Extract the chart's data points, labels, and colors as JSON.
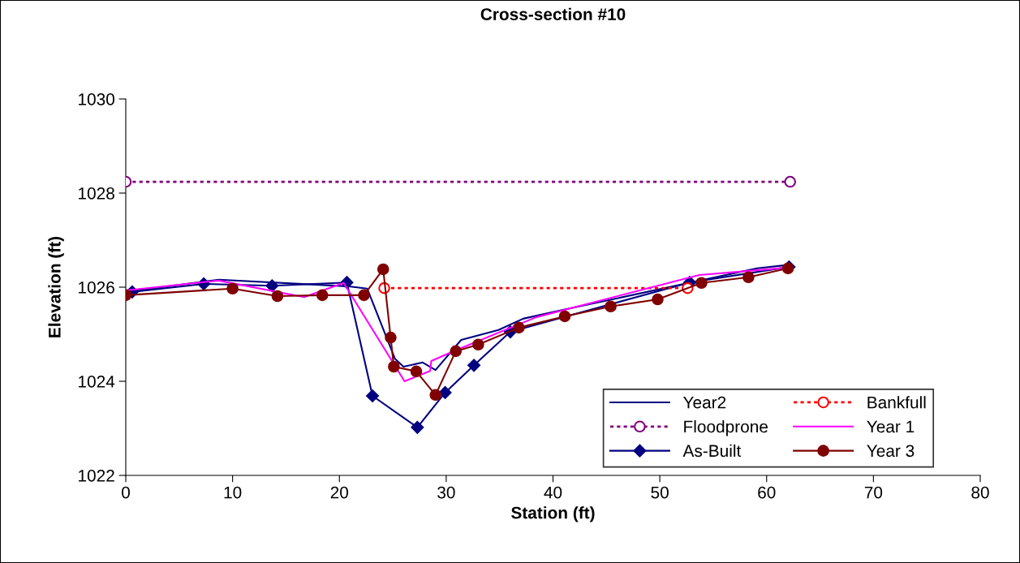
{
  "chart_data": {
    "type": "line",
    "title": "Cross-section #10",
    "xlabel": "Station (ft)",
    "ylabel": "Elevation (ft)",
    "xlim": [
      0,
      80
    ],
    "xticks": [
      0,
      10,
      20,
      30,
      40,
      50,
      60,
      70,
      80
    ],
    "ylim": [
      1022,
      1030
    ],
    "yticks": [
      1022,
      1024,
      1026,
      1028,
      1030
    ],
    "grid": false,
    "legend": "bottom right",
    "series": [
      {
        "name": "Year2",
        "color": "#000080",
        "marker": "none",
        "line_style": "solid",
        "x": [
          0,
          8.7,
          20.7,
          22.6,
          25.2,
          26.0,
          27.8,
          29.0,
          31.4,
          34.9,
          37.2,
          41.0,
          59.1,
          61.9
        ],
        "values": [
          1025.9,
          1026.16,
          1026.02,
          1025.97,
          1024.48,
          1024.31,
          1024.4,
          1024.24,
          1024.88,
          1025.09,
          1025.33,
          1025.52,
          1026.4,
          1026.47
        ]
      },
      {
        "name": "Floodprone",
        "color": "#800080",
        "marker": "circle",
        "line_style": "dotted",
        "x": [
          0,
          62.2
        ],
        "values": [
          1028.24,
          1028.24
        ]
      },
      {
        "name": "As-Built",
        "color": "#000080",
        "marker": "diamond",
        "line_style": "solid",
        "x": [
          0.6,
          7.3,
          13.7,
          20.7,
          23.1,
          27.3,
          29.9,
          32.6,
          36.0,
          52.8,
          62.1
        ],
        "values": [
          1025.9,
          1026.07,
          1026.03,
          1026.1,
          1023.69,
          1023.02,
          1023.76,
          1024.34,
          1025.05,
          1026.1,
          1026.43
        ]
      },
      {
        "name": "Bankfull",
        "color": "#ff0000",
        "marker": "circle",
        "line_style": "dotted",
        "x": [
          24.2,
          52.6
        ],
        "values": [
          1025.98,
          1025.98
        ]
      },
      {
        "name": "Year 1",
        "color": "#ff00ff",
        "marker": "none",
        "line_style": "solid",
        "x": [
          0,
          8.7,
          16.7,
          20.4,
          26.1,
          28.5,
          28.6,
          30.9,
          38.4,
          53.7,
          61.7
        ],
        "values": [
          1025.93,
          1026.14,
          1025.79,
          1026.09,
          1024.0,
          1024.22,
          1024.43,
          1024.66,
          1025.36,
          1026.26,
          1026.41
        ]
      },
      {
        "name": "Year 3",
        "color": "#800000",
        "marker": "circle",
        "line_style": "solid",
        "x": [
          0,
          10.0,
          14.2,
          18.4,
          22.3,
          24.1,
          24.8,
          25.1,
          27.2,
          29.0,
          30.9,
          33.0,
          36.8,
          41.1,
          45.4,
          49.8,
          53.9,
          58.3,
          62.0
        ],
        "values": [
          1025.83,
          1025.97,
          1025.81,
          1025.83,
          1025.83,
          1026.38,
          1024.93,
          1024.31,
          1024.21,
          1023.71,
          1024.64,
          1024.78,
          1025.14,
          1025.38,
          1025.59,
          1025.74,
          1026.09,
          1026.21,
          1026.4
        ]
      }
    ]
  }
}
